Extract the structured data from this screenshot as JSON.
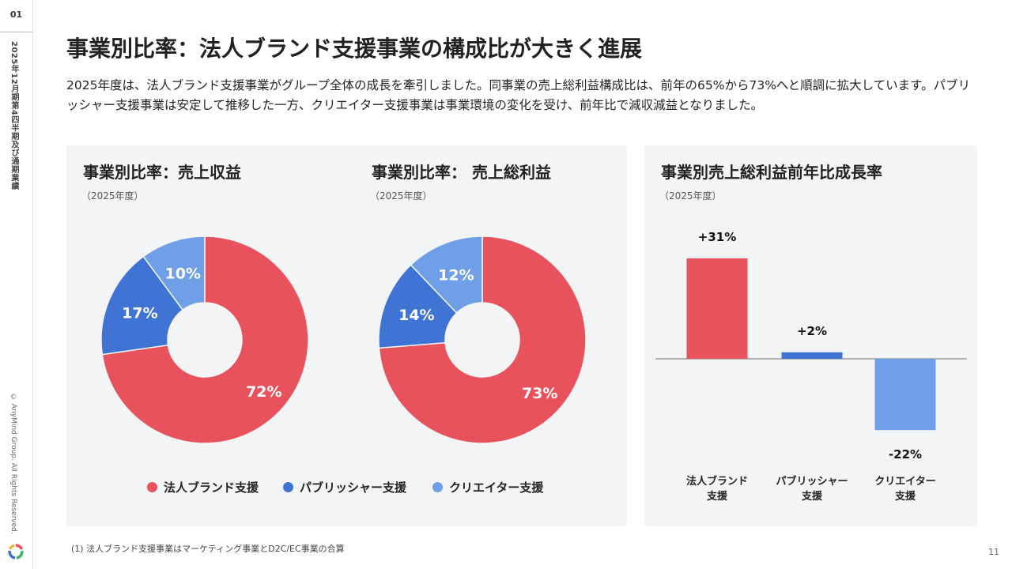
{
  "sidebar": {
    "section_number": "01",
    "vertical_title": "2025年12月期第4四半期及び通期業績",
    "copyright": "© AnyMind Group. All Rights Reserved."
  },
  "page": {
    "title": "事業別比率：法人ブランド支援事業の構成比が大きく進展",
    "lead": "2025年度は、法人ブランド支援事業がグループ全体の成長を牽引しました。同事業の売上総利益構成比は、前年の65%から73%へと順調に拡大しています。パブリッシャー支援事業は安定して推移した一方、クリエイター支援事業は事業環境の変化を受け、前年比で減収減益となりました。",
    "footnote": "(1) 法人ブランド支援事業はマーケティング事業とD2C/EC事業の合算",
    "page_number": "11"
  },
  "colors": {
    "corporate": "#e8525c",
    "publisher": "#3f73d4",
    "creator": "#6f9fe6"
  },
  "legend": [
    "法人ブランド支援",
    "パブリッシャー支援",
    "クリエイター支援"
  ],
  "chart_data": [
    {
      "type": "pie",
      "title": "事業別比率：売上収益",
      "subtitle": "（2025年度）",
      "categories": [
        "法人ブランド支援",
        "パブリッシャー支援",
        "クリエイター支援"
      ],
      "values": [
        72,
        17,
        10
      ],
      "labels": [
        "72%",
        "17%",
        "10%"
      ]
    },
    {
      "type": "pie",
      "title": "事業別比率： 売上総利益",
      "subtitle": "（2025年度）",
      "categories": [
        "法人ブランド支援",
        "パブリッシャー支援",
        "クリエイター支援"
      ],
      "values": [
        73,
        14,
        12
      ],
      "labels": [
        "73%",
        "14%",
        "12%"
      ]
    },
    {
      "type": "bar",
      "title": "事業別売上総利益前年比成長率",
      "subtitle": "（2025年度）",
      "categories": [
        "法人ブランド\n支援",
        "パブリッシャー\n支援",
        "クリエイター\n支援"
      ],
      "values": [
        31,
        2,
        -22
      ],
      "labels": [
        "+31%",
        "+2%",
        "-22%"
      ]
    }
  ]
}
